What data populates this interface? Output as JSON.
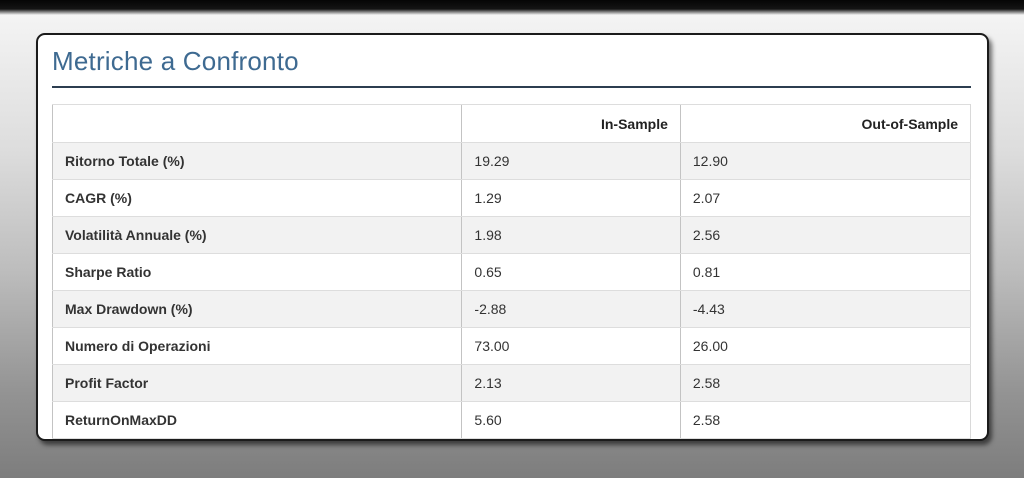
{
  "card": {
    "title": "Metriche a Confronto"
  },
  "table": {
    "headers": {
      "metric": "",
      "in_sample": "In-Sample",
      "out_of_sample": "Out-of-Sample"
    },
    "rows": [
      {
        "label": "Ritorno Totale (%)",
        "in_sample": "19.29",
        "out_of_sample": "12.90"
      },
      {
        "label": "CAGR (%)",
        "in_sample": "1.29",
        "out_of_sample": "2.07"
      },
      {
        "label": "Volatilità Annuale (%)",
        "in_sample": "1.98",
        "out_of_sample": "2.56"
      },
      {
        "label": "Sharpe Ratio",
        "in_sample": "0.65",
        "out_of_sample": "0.81"
      },
      {
        "label": "Max Drawdown (%)",
        "in_sample": "-2.88",
        "out_of_sample": "-4.43"
      },
      {
        "label": "Numero di Operazioni",
        "in_sample": "73.00",
        "out_of_sample": "26.00"
      },
      {
        "label": "Profit Factor",
        "in_sample": "2.13",
        "out_of_sample": "2.58"
      },
      {
        "label": "ReturnOnMaxDD",
        "in_sample": "5.60",
        "out_of_sample": "2.58"
      }
    ]
  },
  "chart_data": {
    "type": "table",
    "title": "Metriche a Confronto",
    "categories": [
      "Ritorno Totale (%)",
      "CAGR (%)",
      "Volatilità Annuale (%)",
      "Sharpe Ratio",
      "Max Drawdown (%)",
      "Numero di Operazioni",
      "Profit Factor",
      "ReturnOnMaxDD"
    ],
    "series": [
      {
        "name": "In-Sample",
        "values": [
          19.29,
          1.29,
          1.98,
          0.65,
          -2.88,
          73.0,
          2.13,
          5.6
        ]
      },
      {
        "name": "Out-of-Sample",
        "values": [
          12.9,
          2.07,
          2.56,
          0.81,
          -4.43,
          26.0,
          2.58,
          2.58
        ]
      }
    ]
  },
  "colors": {
    "title": "#3e6a91",
    "divider": "#2c3e50",
    "row_stripe": "#f2f2f2",
    "card_border": "#1b1b1b"
  }
}
